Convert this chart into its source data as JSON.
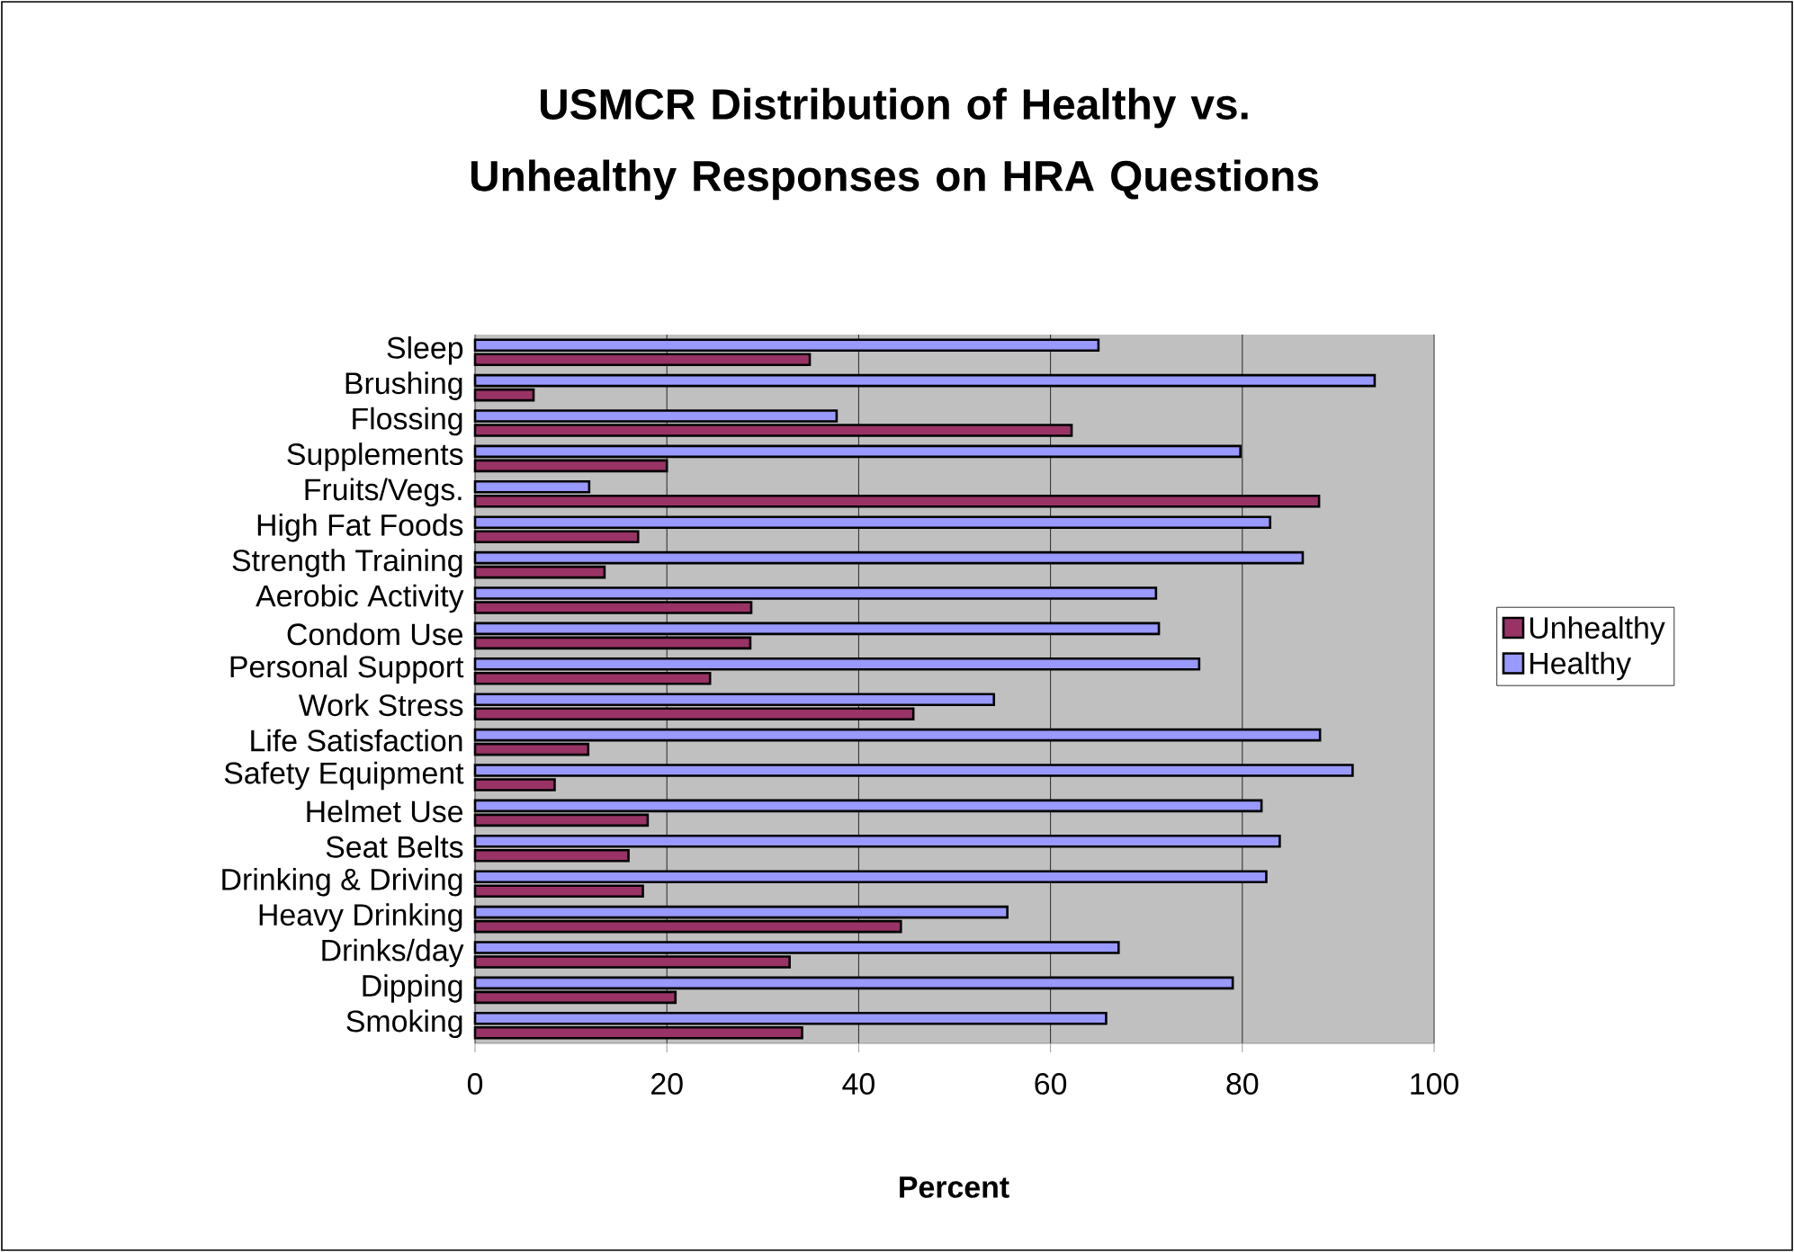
{
  "chart_data": {
    "type": "bar",
    "orientation": "horizontal",
    "title": "USMCR Distribution of Healthy vs. Unhealthy Responses on HRA Questions",
    "xlabel": "Percent",
    "categories": [
      "Sleep",
      "Brushing",
      "Flossing",
      "Supplements",
      "Fruits/Vegs.",
      "High Fat Foods",
      "Strength Training",
      "Aerobic Activity",
      "Condom Use",
      "Personal Support",
      "Work Stress",
      "Life Satisfaction",
      "Safety Equipment",
      "Helmet Use",
      "Seat Belts",
      "Drinking & Driving",
      "Heavy Drinking",
      "Drinks/day",
      "Dipping",
      "Smoking"
    ],
    "series": [
      {
        "name": "Unhealthy",
        "color": "#993366",
        "values": [
          34.9,
          6.1,
          62.2,
          20,
          88,
          17,
          13.5,
          28.8,
          28.7,
          24.5,
          45.7,
          11.8,
          8.3,
          18,
          16,
          17.5,
          44.4,
          32.8,
          20.9,
          34.1
        ]
      },
      {
        "name": "Healthy",
        "color": "#9999ff",
        "values": [
          65,
          93.8,
          37.7,
          79.8,
          11.9,
          82.9,
          86.3,
          71,
          71.3,
          75.5,
          54.1,
          88.1,
          91.5,
          82,
          83.9,
          82.5,
          55.5,
          67.1,
          79,
          65.8
        ]
      }
    ],
    "xlim": [
      0,
      100
    ],
    "xticks": [
      0,
      20,
      40,
      60,
      80,
      100
    ],
    "grid": "x",
    "legend": "right"
  }
}
